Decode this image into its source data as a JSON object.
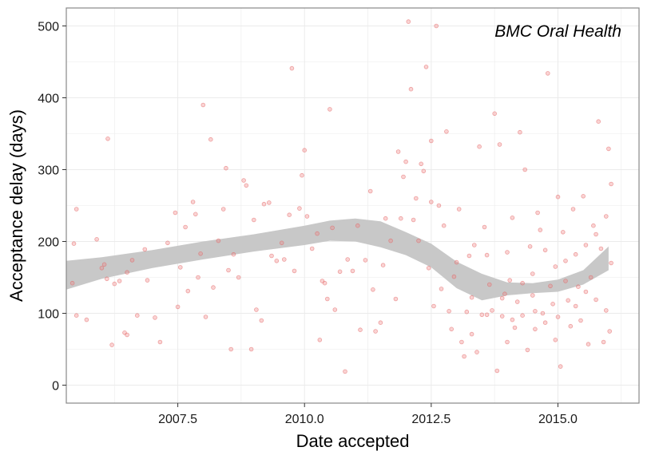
{
  "chart_data": {
    "type": "scatter",
    "title": "",
    "annotation": "BMC Oral Health",
    "xlabel": "Date accepted",
    "ylabel": "Acceptance delay (days)",
    "xlim": [
      2005.3,
      2016.6
    ],
    "ylim": [
      -25,
      525
    ],
    "x_ticks": [
      2007.5,
      2010.0,
      2012.5,
      2015.0
    ],
    "x_tick_labels": [
      "2007.5",
      "2010.0",
      "2012.5",
      "2015.0"
    ],
    "y_ticks": [
      0,
      100,
      200,
      300,
      400,
      500
    ],
    "y_tick_labels": [
      "0",
      "100",
      "200",
      "300",
      "400",
      "500"
    ],
    "grid": true,
    "colors": {
      "points": "#f08080",
      "points_stroke": "#e06060",
      "smooth_band": "#c8c8c8",
      "grid": "#ebebeb",
      "panel_border": "#888888"
    },
    "smooth_band": {
      "x": [
        2005.3,
        2006.0,
        2007.0,
        2008.0,
        2009.0,
        2010.0,
        2010.5,
        2011.0,
        2011.5,
        2012.0,
        2012.5,
        2013.0,
        2013.5,
        2014.0,
        2014.5,
        2015.0,
        2015.5,
        2016.0
      ],
      "lower": [
        133,
        148,
        163,
        175,
        186,
        195,
        201,
        200,
        192,
        181,
        164,
        135,
        118,
        125,
        128,
        130,
        140,
        160
      ],
      "upper": [
        173,
        178,
        188,
        200,
        210,
        222,
        229,
        232,
        228,
        213,
        197,
        172,
        155,
        143,
        142,
        147,
        160,
        193
      ]
    },
    "points": [
      [
        2005.42,
        142
      ],
      [
        2005.45,
        197
      ],
      [
        2005.5,
        245
      ],
      [
        2005.5,
        97
      ],
      [
        2005.7,
        91
      ],
      [
        2005.9,
        203
      ],
      [
        2006.0,
        163
      ],
      [
        2006.05,
        168
      ],
      [
        2006.1,
        148
      ],
      [
        2006.12,
        343
      ],
      [
        2006.2,
        56
      ],
      [
        2006.25,
        141
      ],
      [
        2006.35,
        145
      ],
      [
        2006.45,
        73
      ],
      [
        2006.5,
        70
      ],
      [
        2006.5,
        157
      ],
      [
        2006.6,
        174
      ],
      [
        2006.7,
        97
      ],
      [
        2006.85,
        189
      ],
      [
        2006.9,
        146
      ],
      [
        2007.05,
        94
      ],
      [
        2007.15,
        60
      ],
      [
        2007.3,
        198
      ],
      [
        2007.45,
        240
      ],
      [
        2007.5,
        109
      ],
      [
        2007.55,
        164
      ],
      [
        2007.65,
        220
      ],
      [
        2007.7,
        131
      ],
      [
        2007.8,
        255
      ],
      [
        2007.85,
        238
      ],
      [
        2007.9,
        150
      ],
      [
        2007.95,
        183
      ],
      [
        2008.0,
        390
      ],
      [
        2008.05,
        95
      ],
      [
        2008.15,
        342
      ],
      [
        2008.2,
        136
      ],
      [
        2008.3,
        201
      ],
      [
        2008.4,
        245
      ],
      [
        2008.45,
        302
      ],
      [
        2008.5,
        160
      ],
      [
        2008.55,
        50
      ],
      [
        2008.6,
        182
      ],
      [
        2008.7,
        150
      ],
      [
        2008.8,
        285
      ],
      [
        2008.85,
        278
      ],
      [
        2008.95,
        50
      ],
      [
        2009.0,
        230
      ],
      [
        2009.05,
        105
      ],
      [
        2009.15,
        90
      ],
      [
        2009.2,
        252
      ],
      [
        2009.3,
        254
      ],
      [
        2009.35,
        180
      ],
      [
        2009.45,
        173
      ],
      [
        2009.55,
        198
      ],
      [
        2009.6,
        175
      ],
      [
        2009.7,
        237
      ],
      [
        2009.75,
        441
      ],
      [
        2009.8,
        159
      ],
      [
        2009.9,
        246
      ],
      [
        2009.95,
        292
      ],
      [
        2010.0,
        327
      ],
      [
        2010.05,
        235
      ],
      [
        2010.15,
        190
      ],
      [
        2010.25,
        211
      ],
      [
        2010.3,
        63
      ],
      [
        2010.35,
        145
      ],
      [
        2010.4,
        142
      ],
      [
        2010.45,
        120
      ],
      [
        2010.5,
        384
      ],
      [
        2010.55,
        219
      ],
      [
        2010.6,
        105
      ],
      [
        2010.7,
        158
      ],
      [
        2010.8,
        19
      ],
      [
        2010.85,
        175
      ],
      [
        2010.95,
        159
      ],
      [
        2011.05,
        222
      ],
      [
        2011.1,
        77
      ],
      [
        2011.2,
        174
      ],
      [
        2011.3,
        270
      ],
      [
        2011.35,
        133
      ],
      [
        2011.4,
        75
      ],
      [
        2011.5,
        87
      ],
      [
        2011.55,
        167
      ],
      [
        2011.6,
        232
      ],
      [
        2011.7,
        201
      ],
      [
        2011.8,
        120
      ],
      [
        2011.85,
        325
      ],
      [
        2011.9,
        232
      ],
      [
        2011.95,
        290
      ],
      [
        2012.0,
        311
      ],
      [
        2012.05,
        506
      ],
      [
        2012.1,
        412
      ],
      [
        2012.15,
        230
      ],
      [
        2012.2,
        260
      ],
      [
        2012.25,
        201
      ],
      [
        2012.3,
        308
      ],
      [
        2012.35,
        298
      ],
      [
        2012.4,
        443
      ],
      [
        2012.45,
        163
      ],
      [
        2012.5,
        340
      ],
      [
        2012.5,
        255
      ],
      [
        2012.55,
        110
      ],
      [
        2012.6,
        500
      ],
      [
        2012.65,
        250
      ],
      [
        2012.7,
        134
      ],
      [
        2012.75,
        222
      ],
      [
        2012.8,
        353
      ],
      [
        2012.85,
        103
      ],
      [
        2012.9,
        78
      ],
      [
        2012.95,
        151
      ],
      [
        2013.0,
        171
      ],
      [
        2013.05,
        245
      ],
      [
        2013.1,
        60
      ],
      [
        2013.15,
        40
      ],
      [
        2013.2,
        102
      ],
      [
        2013.25,
        180
      ],
      [
        2013.3,
        122
      ],
      [
        2013.35,
        195
      ],
      [
        2013.4,
        46
      ],
      [
        2013.45,
        332
      ],
      [
        2013.5,
        98
      ],
      [
        2013.55,
        220
      ],
      [
        2013.6,
        181
      ],
      [
        2013.65,
        140
      ],
      [
        2013.7,
        104
      ],
      [
        2013.75,
        378
      ],
      [
        2013.8,
        20
      ],
      [
        2013.85,
        335
      ],
      [
        2013.9,
        96
      ],
      [
        2013.95,
        127
      ],
      [
        2014.0,
        185
      ],
      [
        2014.0,
        60
      ],
      [
        2014.05,
        146
      ],
      [
        2014.1,
        233
      ],
      [
        2014.15,
        80
      ],
      [
        2014.2,
        116
      ],
      [
        2014.25,
        352
      ],
      [
        2014.3,
        97
      ],
      [
        2014.35,
        300
      ],
      [
        2014.4,
        49
      ],
      [
        2014.45,
        193
      ],
      [
        2014.5,
        155
      ],
      [
        2014.5,
        125
      ],
      [
        2014.55,
        78
      ],
      [
        2014.6,
        240
      ],
      [
        2014.65,
        216
      ],
      [
        2014.7,
        100
      ],
      [
        2014.75,
        188
      ],
      [
        2014.8,
        434
      ],
      [
        2014.85,
        138
      ],
      [
        2014.9,
        113
      ],
      [
        2014.95,
        165
      ],
      [
        2015.0,
        262
      ],
      [
        2015.0,
        95
      ],
      [
        2015.05,
        26
      ],
      [
        2015.1,
        213
      ],
      [
        2015.15,
        145
      ],
      [
        2015.2,
        118
      ],
      [
        2015.25,
        82
      ],
      [
        2015.3,
        245
      ],
      [
        2015.35,
        182
      ],
      [
        2015.4,
        137
      ],
      [
        2015.45,
        90
      ],
      [
        2015.5,
        263
      ],
      [
        2015.55,
        195
      ],
      [
        2015.6,
        57
      ],
      [
        2015.65,
        150
      ],
      [
        2015.7,
        222
      ],
      [
        2015.75,
        119
      ],
      [
        2015.8,
        367
      ],
      [
        2015.85,
        190
      ],
      [
        2015.9,
        60
      ],
      [
        2015.95,
        104
      ],
      [
        2016.0,
        329
      ],
      [
        2016.02,
        75
      ],
      [
        2016.05,
        170
      ],
      [
        2016.05,
        280
      ],
      [
        2013.9,
        121
      ],
      [
        2014.1,
        91
      ],
      [
        2014.3,
        142
      ],
      [
        2014.55,
        103
      ],
      [
        2014.75,
        87
      ],
      [
        2014.95,
        63
      ],
      [
        2015.15,
        173
      ],
      [
        2015.35,
        110
      ],
      [
        2015.55,
        130
      ],
      [
        2015.75,
        210
      ],
      [
        2015.95,
        235
      ],
      [
        2013.3,
        71
      ],
      [
        2013.6,
        98
      ]
    ]
  }
}
